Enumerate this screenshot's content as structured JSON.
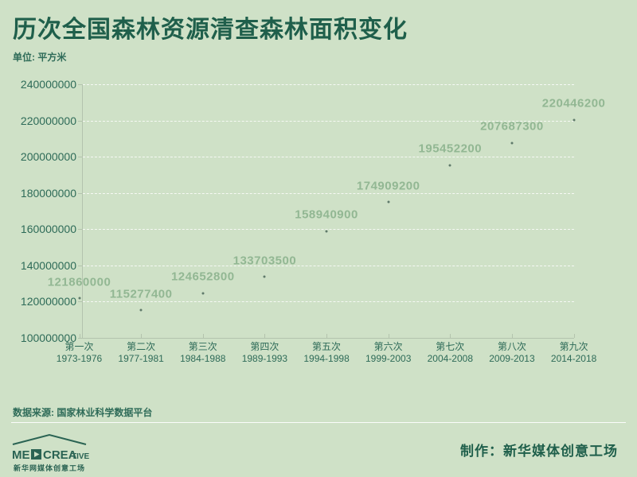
{
  "title": "历次全国森林资源清查森林面积变化",
  "unit_label": "单位: 平方米",
  "source_label": "数据来源: 国家林业科学数据平台",
  "credit_label": "制作：新华媒体创意工场",
  "logo": {
    "brand_me": "ME",
    "brand_crea": "CREA",
    "brand_tive": "TIVE",
    "subtitle": "新华网媒体创意工场"
  },
  "colors": {
    "background": "#cfe1c7",
    "title_text": "#1f5f4b",
    "axis_text": "#2e6b58",
    "data_label": "#92b793",
    "gridline": "rgba(255,255,255,0.8)",
    "axis_line": "#b3c3ad",
    "point": "#5f7a6a",
    "footer_text": "#27604d"
  },
  "chart_data": {
    "type": "scatter",
    "title": "历次全国森林资源清查森林面积变化",
    "ylabel": "平方米",
    "categories": [
      "第一次",
      "第二次",
      "第三次",
      "第四次",
      "第五次",
      "第六次",
      "第七次",
      "第八次",
      "第九次"
    ],
    "periods": [
      "1973-1976",
      "1977-1981",
      "1984-1988",
      "1989-1993",
      "1994-1998",
      "1999-2003",
      "2004-2008",
      "2009-2013",
      "2014-2018"
    ],
    "values": [
      121860000,
      115277400,
      124652800,
      133703500,
      158940900,
      174909200,
      195452200,
      207687300,
      220446200
    ],
    "ylim": [
      100000000,
      240000000
    ],
    "ytick_step": 20000000,
    "grid": "horizontal-dashed",
    "data_labels": true,
    "legend": "none"
  }
}
